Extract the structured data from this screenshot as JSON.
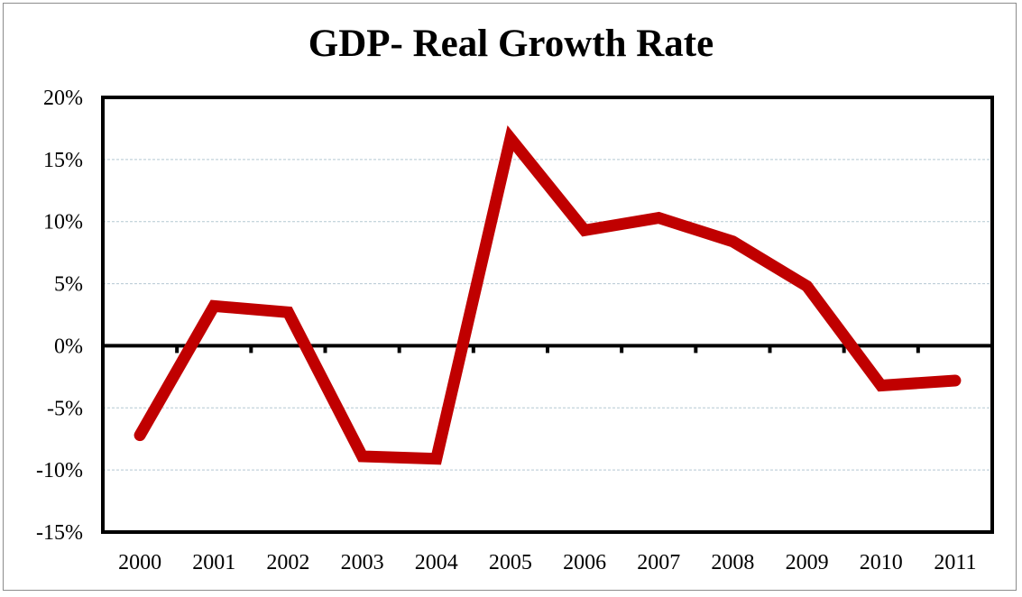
{
  "chart_data": {
    "type": "line",
    "title": "GDP- Real Growth Rate",
    "xlabel": "",
    "ylabel": "",
    "categories": [
      "2000",
      "2001",
      "2002",
      "2003",
      "2004",
      "2005",
      "2006",
      "2007",
      "2008",
      "2009",
      "2010",
      "2011"
    ],
    "series": [
      {
        "values": [
          -7.2,
          3.2,
          2.7,
          -8.9,
          -9.1,
          16.7,
          9.3,
          10.3,
          8.4,
          4.8,
          -3.2,
          -2.8
        ]
      }
    ],
    "ylim": [
      -15,
      20
    ],
    "yticks": [
      20,
      15,
      10,
      5,
      0,
      -5,
      -10,
      -15
    ],
    "ytick_labels": [
      "20%",
      "15%",
      "10%",
      "5%",
      "0%",
      "-5%",
      "-10%",
      "-15%"
    ],
    "grid": true,
    "legend": "none",
    "colors": {
      "line": "#c00000",
      "grid": "#b4c8d2",
      "axis": "#000000"
    }
  }
}
